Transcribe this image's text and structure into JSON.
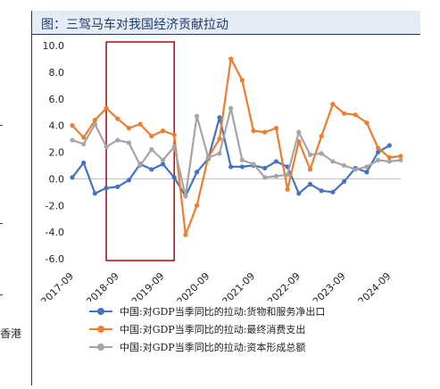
{
  "header": {
    "title": "图：三驾马车对我国经济贡献拉动"
  },
  "left_fragment": "香港",
  "colors": {
    "net_exports": "#4472c4",
    "consumption": "#ed7d31",
    "capital": "#a5a5a5",
    "highlight_box": "#c00000"
  },
  "chart_data": {
    "type": "line",
    "ylim": [
      -6.0,
      10.0
    ],
    "yticks": [
      "10.0",
      "8.0",
      "6.0",
      "4.0",
      "2.0",
      "0.0",
      "-2.0",
      "-4.0",
      "-6.0"
    ],
    "xtick_labels": [
      "2017-09",
      "2018-09",
      "2019-09",
      "2020-09",
      "2021-09",
      "2022-09",
      "2023-09",
      "2024-09"
    ],
    "x": [
      "2017-09",
      "2017-12",
      "2018-03",
      "2018-06",
      "2018-09",
      "2018-12",
      "2019-03",
      "2019-06",
      "2019-09",
      "2019-12",
      "2020-03",
      "2020-06",
      "2020-09",
      "2020-12",
      "2021-03",
      "2021-06",
      "2021-09",
      "2021-12",
      "2022-03",
      "2022-06",
      "2022-09",
      "2022-12",
      "2023-03",
      "2023-06",
      "2023-09",
      "2023-12",
      "2024-03",
      "2024-06",
      "2024-09",
      "2024-12"
    ],
    "highlight_range": [
      "2018-06",
      "2019-12"
    ],
    "series": [
      {
        "name": "中国:对GDP当季同比的拉动:货物和服务净出口",
        "color": "#4472c4",
        "values": [
          0.1,
          1.2,
          -1.1,
          -0.7,
          -0.6,
          -0.1,
          1.1,
          0.7,
          1.1,
          0.1,
          -1.3,
          0.5,
          1.5,
          4.6,
          0.9,
          0.9,
          1.0,
          0.8,
          1.3,
          0.9,
          -1.1,
          -0.4,
          -0.9,
          -1.0,
          -0.2,
          0.8,
          0.5,
          2.0,
          2.5,
          null
        ]
      },
      {
        "name": "中国:对GDP当季同比的拉动:最终消费支出",
        "color": "#ed7d31",
        "values": [
          4.0,
          3.1,
          4.4,
          5.3,
          4.5,
          3.8,
          4.1,
          3.2,
          3.6,
          3.3,
          -4.2,
          -2.0,
          1.6,
          3.0,
          9.0,
          7.4,
          3.6,
          3.5,
          3.8,
          -0.8,
          2.8,
          0.7,
          3.2,
          5.6,
          4.9,
          4.8,
          4.2,
          2.3,
          1.6,
          1.7
        ]
      },
      {
        "name": "中国:对GDP当季同比的拉动:资本形成总额",
        "color": "#a5a5a5",
        "values": [
          2.9,
          2.6,
          4.1,
          2.4,
          2.9,
          2.7,
          1.0,
          2.2,
          1.4,
          2.4,
          -1.3,
          4.7,
          1.6,
          1.9,
          5.3,
          1.4,
          1.1,
          0.1,
          0.2,
          0.3,
          3.5,
          1.8,
          1.9,
          1.3,
          1.0,
          0.7,
          0.9,
          1.4,
          1.3,
          1.4
        ]
      }
    ]
  }
}
